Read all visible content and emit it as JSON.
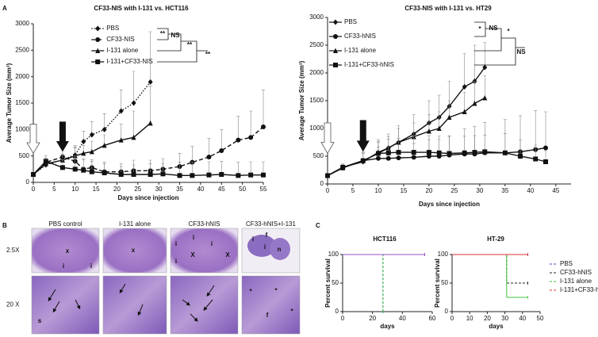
{
  "chart_data": [
    {
      "type": "line",
      "title": "CF33-NIS with I-131 vs. HCT116",
      "x_label": "Days since injection",
      "y_label": "Average Tumor Size (mm³)",
      "xlim": [
        0,
        55
      ],
      "xticks": [
        0,
        5,
        10,
        15,
        20,
        25,
        30,
        35,
        40,
        45,
        50,
        55
      ],
      "ylim": [
        0,
        3000
      ],
      "yticks": [
        0,
        500,
        1000,
        1500,
        2000,
        2500,
        3000
      ],
      "legend": "upper center",
      "annotations": [
        "**",
        "NS",
        "**",
        "**"
      ],
      "series": [
        {
          "name": "PBS",
          "color": "#111111",
          "marker": "diamond",
          "dash": "dotted",
          "x": [
            0,
            3,
            7,
            10,
            12,
            14,
            17,
            21,
            24,
            28
          ],
          "values": [
            150,
            330,
            430,
            520,
            770,
            900,
            1000,
            1350,
            1500,
            1900
          ],
          "errors": [
            30,
            80,
            100,
            150,
            200,
            250,
            300,
            400,
            600,
            950
          ]
        },
        {
          "name": "CF33-NIS",
          "color": "#111111",
          "marker": "circle",
          "dash": "dashed",
          "x": [
            0,
            3,
            7,
            10,
            12,
            14,
            17,
            21,
            24,
            28,
            31,
            35,
            38,
            42,
            45,
            49,
            52,
            55
          ],
          "values": [
            150,
            380,
            480,
            400,
            250,
            280,
            200,
            200,
            220,
            220,
            250,
            300,
            380,
            480,
            600,
            800,
            850,
            1050
          ],
          "errors": [
            30,
            80,
            150,
            300,
            200,
            150,
            150,
            150,
            200,
            200,
            200,
            250,
            300,
            350,
            400,
            450,
            500,
            700
          ]
        },
        {
          "name": "I-131 alone",
          "color": "#111111",
          "marker": "triangle",
          "dash": "solid",
          "x": [
            0,
            3,
            7,
            10,
            12,
            14,
            17,
            21,
            24,
            28
          ],
          "values": [
            150,
            350,
            420,
            500,
            550,
            580,
            700,
            800,
            850,
            1120
          ],
          "errors": [
            30,
            60,
            100,
            150,
            150,
            200,
            200,
            300,
            500,
            700
          ]
        },
        {
          "name": "I-131+CF33-NIS",
          "color": "#111111",
          "marker": "square",
          "dash": "solid",
          "x": [
            0,
            3,
            7,
            10,
            12,
            14,
            17,
            21,
            24,
            28,
            31,
            35,
            38,
            42,
            45,
            49,
            52,
            55
          ],
          "values": [
            150,
            400,
            280,
            250,
            230,
            200,
            180,
            150,
            150,
            150,
            160,
            130,
            130,
            140,
            150,
            130,
            140,
            140
          ],
          "errors": [
            30,
            100,
            150,
            250,
            200,
            200,
            200,
            150,
            180,
            200,
            200,
            250,
            250,
            250,
            250,
            250,
            250,
            250
          ]
        }
      ]
    },
    {
      "type": "line",
      "title": "CF33-NIS with I-131 vs. HT29",
      "x_label": "Days since injection",
      "y_label": "Average Tumor Size (mm³)",
      "xlim": [
        0,
        48
      ],
      "xticks": [
        0,
        5,
        10,
        15,
        20,
        25,
        30,
        35,
        40,
        45
      ],
      "ylim": [
        0,
        3000
      ],
      "yticks": [
        0,
        500,
        1000,
        1500,
        2000,
        2500,
        3000
      ],
      "legend": "upper left",
      "annotations": [
        "*",
        "NS",
        "*",
        "NS"
      ],
      "series": [
        {
          "name": "PBS",
          "color": "#111111",
          "marker": "diamond",
          "dash": "solid",
          "x": [
            0,
            3,
            7,
            10,
            12,
            14,
            17,
            20,
            22,
            24,
            27,
            29,
            31
          ],
          "values": [
            150,
            300,
            400,
            570,
            650,
            750,
            900,
            1100,
            1200,
            1400,
            1750,
            1850,
            2100
          ],
          "errors": [
            30,
            60,
            150,
            200,
            250,
            300,
            350,
            400,
            400,
            450,
            600,
            650,
            450
          ]
        },
        {
          "name": "CF33-hNIS",
          "color": "#111111",
          "marker": "circle",
          "dash": "solid",
          "x": [
            0,
            3,
            7,
            10,
            12,
            14,
            17,
            20,
            22,
            24,
            27,
            29,
            31,
            35,
            38,
            41,
            43
          ],
          "values": [
            150,
            290,
            420,
            460,
            460,
            470,
            480,
            500,
            500,
            520,
            540,
            540,
            560,
            560,
            580,
            620,
            650
          ],
          "errors": [
            20,
            50,
            150,
            200,
            200,
            250,
            250,
            300,
            300,
            350,
            450,
            500,
            550,
            600,
            650,
            700,
            650
          ]
        },
        {
          "name": "I-131 alone",
          "color": "#111111",
          "marker": "triangle",
          "dash": "solid",
          "x": [
            0,
            3,
            7,
            10,
            12,
            14,
            17,
            20,
            22,
            24,
            27,
            29,
            31
          ],
          "values": [
            150,
            290,
            420,
            550,
            650,
            750,
            850,
            950,
            1000,
            1200,
            1300,
            1450,
            1550
          ],
          "errors": [
            20,
            50,
            150,
            200,
            200,
            250,
            250,
            300,
            300,
            300,
            350,
            400,
            400
          ]
        },
        {
          "name": "I-131+CF33-hNIS",
          "color": "#111111",
          "marker": "square",
          "dash": "solid",
          "x": [
            0,
            3,
            7,
            10,
            12,
            14,
            17,
            20,
            22,
            24,
            27,
            29,
            31,
            35,
            38,
            41,
            43
          ],
          "values": [
            150,
            300,
            420,
            550,
            560,
            570,
            570,
            570,
            560,
            550,
            560,
            570,
            580,
            560,
            500,
            450,
            400
          ],
          "errors": [
            20,
            50,
            150,
            250,
            250,
            250,
            300,
            300,
            300,
            300,
            300,
            300,
            300,
            350,
            300,
            250,
            200
          ]
        }
      ]
    },
    {
      "type": "survival",
      "title": "HCT116",
      "x_label": "days",
      "y_label": "Percent survival",
      "xlim": [
        0,
        60
      ],
      "xticks": [
        0,
        20,
        40,
        60
      ],
      "ylim": [
        0,
        100
      ],
      "yticks": [
        0,
        50,
        100
      ],
      "series": [
        {
          "color": "#3a4fc4",
          "dash": "dashed",
          "x": [
            0,
            27,
            27
          ],
          "values": [
            100,
            100,
            0
          ]
        },
        {
          "color": "#222222",
          "dash": "dashed",
          "x": [
            0,
            55
          ],
          "values": [
            100,
            100
          ]
        },
        {
          "color": "#3cc43c",
          "dash": "dashed",
          "x": [
            0,
            27,
            27
          ],
          "values": [
            100,
            100,
            0
          ]
        },
        {
          "color": "#9a4fc8",
          "dash": "solid",
          "x": [
            0,
            55
          ],
          "values": [
            100,
            100
          ]
        }
      ]
    },
    {
      "type": "survival",
      "title": "HT-29",
      "x_label": "days",
      "y_label": "Percent survival",
      "xlim": [
        0,
        50
      ],
      "xticks": [
        0,
        10,
        20,
        30,
        40,
        50
      ],
      "ylim": [
        0,
        100
      ],
      "yticks": [
        0,
        50,
        100
      ],
      "legend": "right",
      "series": [
        {
          "name": "PBS",
          "color": "#3a4fc4",
          "dash": "dashed",
          "x": [
            0,
            43
          ],
          "values": [
            100,
            100
          ]
        },
        {
          "name": "CF33-hNIS",
          "color": "#222222",
          "dash": "dashed",
          "x": [
            0,
            31,
            31,
            43
          ],
          "values": [
            100,
            100,
            50,
            50
          ]
        },
        {
          "name": "I-131 alone",
          "color": "#3cc43c",
          "dash": "solid",
          "x": [
            0,
            31,
            31,
            43
          ],
          "values": [
            100,
            100,
            25,
            25
          ]
        },
        {
          "name": "I-131+CF33-hNIS",
          "color": "#d83030",
          "dash": "solid",
          "x": [
            0,
            43
          ],
          "values": [
            100,
            100
          ]
        }
      ]
    }
  ],
  "panel_labels": [
    "A",
    "B",
    "C"
  ],
  "histology": {
    "columns": [
      "PBS control",
      "I-131 alone",
      "CF33-hNIS",
      "CF33-hNIS+I-131"
    ],
    "rows": [
      "2.5X",
      "20 X"
    ],
    "cell_labels": [
      [
        [
          "x",
          "i",
          "i"
        ],
        [
          "x"
        ],
        [
          "i",
          "i",
          "i",
          "X",
          "X",
          "i"
        ],
        [
          "i",
          "f",
          "i",
          "n"
        ]
      ],
      [
        [
          "s"
        ],
        [],
        [],
        [
          "*",
          "*",
          "*",
          "f"
        ]
      ]
    ]
  }
}
